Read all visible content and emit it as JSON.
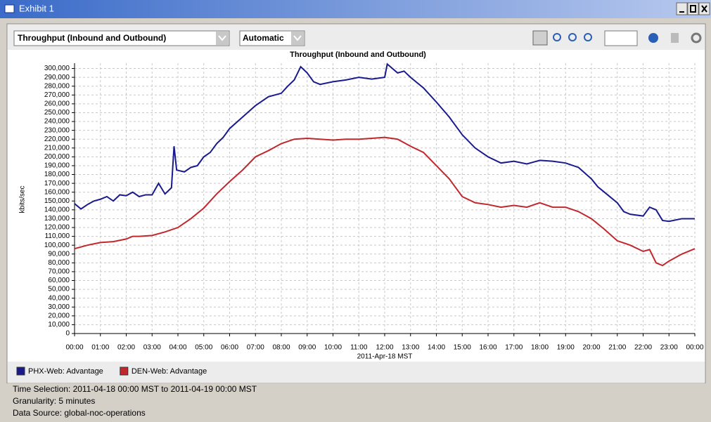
{
  "window": {
    "title": "Exhibit 1"
  },
  "toolbar": {
    "metric": "Throughput (Inbound and Outbound)",
    "scale": "Automatic"
  },
  "chart_data": {
    "type": "line",
    "title": "Throughput (Inbound and Outbound)",
    "x_label": "2011-Apr-18 MST",
    "y_label": "kbits/sec",
    "grid": true,
    "legend": "bottom-left",
    "xlim": [
      0,
      24
    ],
    "ylim": [
      0,
      306000
    ],
    "xticks": [
      {
        "value": 0,
        "label": "00:00"
      },
      {
        "value": 1,
        "label": "01:00"
      },
      {
        "value": 2,
        "label": "02:00"
      },
      {
        "value": 3,
        "label": "03:00"
      },
      {
        "value": 4,
        "label": "04:00"
      },
      {
        "value": 5,
        "label": "05:00"
      },
      {
        "value": 6,
        "label": "06:00"
      },
      {
        "value": 7,
        "label": "07:00"
      },
      {
        "value": 8,
        "label": "08:00"
      },
      {
        "value": 9,
        "label": "09:00"
      },
      {
        "value": 10,
        "label": "10:00"
      },
      {
        "value": 11,
        "label": "11:00"
      },
      {
        "value": 12,
        "label": "12:00"
      },
      {
        "value": 13,
        "label": "13:00"
      },
      {
        "value": 14,
        "label": "14:00"
      },
      {
        "value": 15,
        "label": "15:00"
      },
      {
        "value": 16,
        "label": "16:00"
      },
      {
        "value": 17,
        "label": "17:00"
      },
      {
        "value": 18,
        "label": "18:00"
      },
      {
        "value": 19,
        "label": "19:00"
      },
      {
        "value": 20,
        "label": "20:00"
      },
      {
        "value": 21,
        "label": "21:00"
      },
      {
        "value": 22,
        "label": "22:00"
      },
      {
        "value": 23,
        "label": "23:00"
      },
      {
        "value": 24,
        "label": "00:00"
      }
    ],
    "yticks": [
      0,
      {
        "value": 10000,
        "label": "10,000"
      },
      {
        "value": 20000,
        "label": "20,000"
      },
      {
        "value": 30000,
        "label": "30,000"
      },
      {
        "value": 40000,
        "label": "40,000"
      },
      {
        "value": 50000,
        "label": "50,000"
      },
      {
        "value": 60000,
        "label": "60,000"
      },
      {
        "value": 70000,
        "label": "70,000"
      },
      {
        "value": 80000,
        "label": "80,000"
      },
      {
        "value": 90000,
        "label": "90,000"
      },
      {
        "value": 100000,
        "label": "100,000"
      },
      {
        "value": 110000,
        "label": "110,000"
      },
      {
        "value": 120000,
        "label": "120,000"
      },
      {
        "value": 130000,
        "label": "130,000"
      },
      {
        "value": 140000,
        "label": "140,000"
      },
      {
        "value": 150000,
        "label": "150,000"
      },
      {
        "value": 160000,
        "label": "160,000"
      },
      {
        "value": 170000,
        "label": "170,000"
      },
      {
        "value": 180000,
        "label": "180,000"
      },
      {
        "value": 190000,
        "label": "190,000"
      },
      {
        "value": 200000,
        "label": "200,000"
      },
      {
        "value": 210000,
        "label": "210,000"
      },
      {
        "value": 220000,
        "label": "220,000"
      },
      {
        "value": 230000,
        "label": "230,000"
      },
      {
        "value": 240000,
        "label": "240,000"
      },
      {
        "value": 250000,
        "label": "250,000"
      },
      {
        "value": 260000,
        "label": "260,000"
      },
      {
        "value": 270000,
        "label": "270,000"
      },
      {
        "value": 280000,
        "label": "280,000"
      },
      {
        "value": 290000,
        "label": "290,000"
      },
      {
        "value": 300000,
        "label": "300,000"
      }
    ],
    "series": [
      {
        "name": "PHX-Web: Advantage",
        "color": "#1a1a8c",
        "x": [
          0,
          0.25,
          0.5,
          0.75,
          1,
          1.25,
          1.5,
          1.75,
          2,
          2.25,
          2.5,
          2.75,
          3,
          3.25,
          3.5,
          3.75,
          3.85,
          3.95,
          4.25,
          4.5,
          4.75,
          5,
          5.25,
          5.5,
          5.75,
          6,
          6.5,
          7,
          7.5,
          8,
          8.25,
          8.5,
          8.75,
          9,
          9.25,
          9.5,
          10,
          10.5,
          11,
          11.5,
          12,
          12.1,
          12.5,
          12.75,
          13,
          13.5,
          14,
          14.5,
          15,
          15.5,
          16,
          16.5,
          17,
          17.5,
          18,
          18.5,
          19,
          19.5,
          20,
          20.25,
          20.5,
          21,
          21.25,
          21.5,
          22,
          22.25,
          22.5,
          22.75,
          23,
          23.5,
          24
        ],
        "values": [
          147000,
          141000,
          146000,
          150000,
          152000,
          155000,
          150000,
          157000,
          156000,
          160000,
          155000,
          157000,
          157000,
          170000,
          158000,
          165000,
          212000,
          185000,
          183000,
          188000,
          190000,
          200000,
          205000,
          215000,
          222000,
          232000,
          245000,
          258000,
          268000,
          272000,
          280000,
          287000,
          302000,
          295000,
          285000,
          282000,
          285000,
          287000,
          290000,
          288000,
          290000,
          305000,
          295000,
          297000,
          290000,
          278000,
          262000,
          245000,
          225000,
          210000,
          200000,
          193000,
          195000,
          192000,
          196000,
          195000,
          193000,
          188000,
          175000,
          166000,
          160000,
          148000,
          138000,
          135000,
          133000,
          143000,
          140000,
          128000,
          127000,
          130000,
          130000
        ]
      },
      {
        "name": "DEN-Web: Advantage",
        "color": "#c0282d",
        "x": [
          0,
          0.5,
          1,
          1.5,
          2,
          2.25,
          2.5,
          3,
          3.5,
          4,
          4.5,
          5,
          5.5,
          6,
          6.5,
          7,
          7.5,
          8,
          8.5,
          9,
          9.5,
          10,
          10.5,
          11,
          11.5,
          12,
          12.5,
          13,
          13.5,
          14,
          14.5,
          15,
          15.5,
          16,
          16.5,
          17,
          17.5,
          18,
          18.5,
          19,
          19.5,
          20,
          20.5,
          21,
          21.5,
          22,
          22.25,
          22.5,
          22.75,
          23,
          23.5,
          24
        ],
        "values": [
          96000,
          100000,
          103000,
          104000,
          107000,
          110000,
          110000,
          111000,
          115000,
          120000,
          130000,
          142000,
          158000,
          172000,
          185000,
          200000,
          207000,
          215000,
          220000,
          221000,
          220000,
          219000,
          220000,
          220000,
          221000,
          222000,
          220000,
          212000,
          205000,
          190000,
          175000,
          155000,
          148000,
          146000,
          143000,
          145000,
          143000,
          148000,
          143000,
          143000,
          138000,
          130000,
          118000,
          105000,
          100000,
          93000,
          95000,
          80000,
          77000,
          82000,
          90000,
          96000
        ]
      }
    ]
  },
  "footer": {
    "time_selection": "Time Selection: 2011-04-18 00:00 MST to 2011-04-19 00:00 MST",
    "granularity": "Granularity: 5 minutes",
    "data_source": "Data Source: global-noc-operations"
  }
}
